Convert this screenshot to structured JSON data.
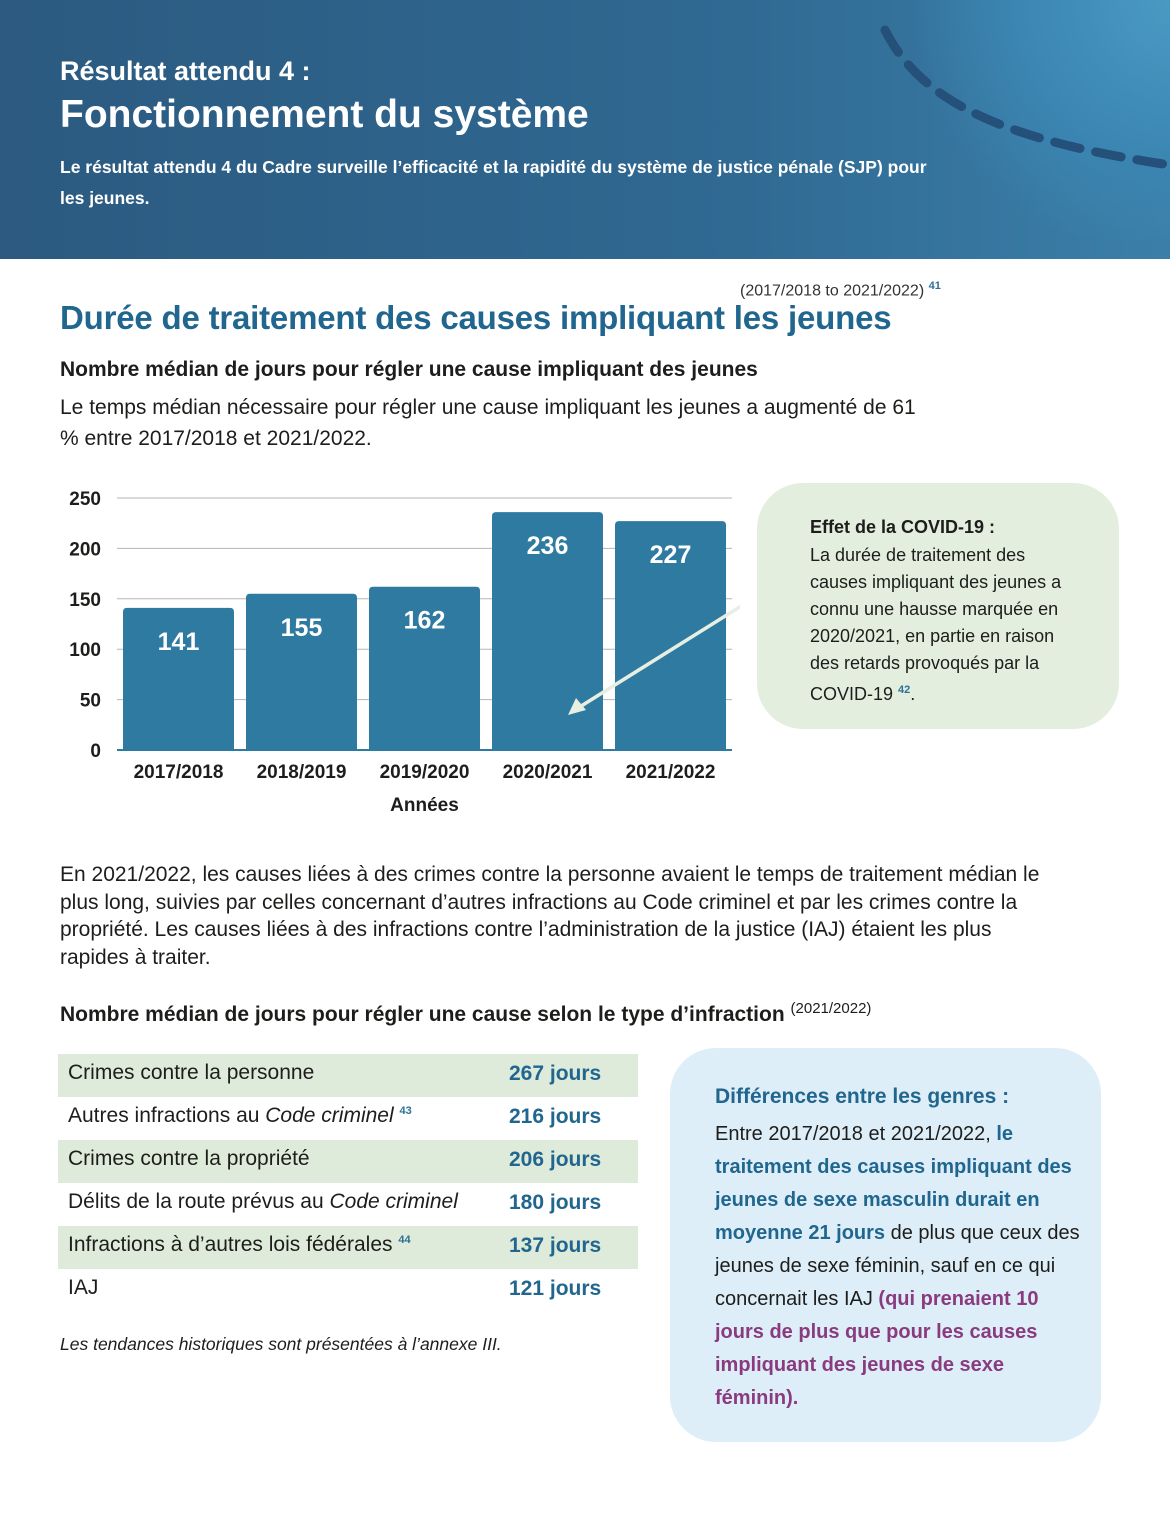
{
  "header": {
    "kicker": "Résultat attendu 4 :",
    "title": "Fonctionnement du système",
    "intro": "Le résultat attendu 4 du Cadre surveille l’efficacité et la rapidité du système de justice pénale (SJP) pour les jeunes."
  },
  "section": {
    "period": "(2017/2018 to 2021/2022)",
    "period_footnote": "41",
    "heading": "Durée de traitement des causes impliquant les jeunes",
    "subheading": "Nombre médian de jours pour régler une cause impliquant des jeunes",
    "paragraph": "Le temps médian nécessaire pour régler une cause impliquant les jeunes a augmenté de 61 % entre 2017/2018 et 2021/2022."
  },
  "chart_data": {
    "type": "bar",
    "categories": [
      "2017/2018",
      "2018/2019",
      "2019/2020",
      "2020/2021",
      "2021/2022"
    ],
    "values": [
      141,
      155,
      162,
      236,
      227
    ],
    "xlabel": "Années",
    "ylabel": "",
    "ylim": [
      0,
      250
    ],
    "yticks": [
      0,
      50,
      100,
      150,
      200,
      250
    ],
    "grid": true,
    "bar_color": "#2e7aa1",
    "label_color": "#ffffff"
  },
  "covid": {
    "title": "Effet de la COVID-19 :",
    "text": "La durée de traitement des causes impliquant des jeunes a connu une hausse marquée en 2020/2021, en partie en raison des retards provoqués par la COVID-19",
    "footnote": "42",
    "end": "."
  },
  "paragraph2": "En 2021/2022, les causes liées à des crimes contre la personne avaient le temps de traitement médian le plus long, suivies par celles concernant d’autres infractions au Code criminel et par les crimes contre la propriété. Les causes liées à des infractions contre l’administration de la justice (IAJ) étaient les plus rapides à traiter.",
  "offense_table": {
    "heading": "Nombre médian de jours pour régler une cause selon le type d’infraction",
    "year": "(2021/2022)",
    "rows": [
      {
        "pre": "Crimes contre la personne",
        "ital": "",
        "sup": "",
        "value": "267 jours"
      },
      {
        "pre": "Autres infractions au ",
        "ital": "Code criminel",
        "sup": "43",
        "value": "216 jours"
      },
      {
        "pre": "Crimes contre la propriété",
        "ital": "",
        "sup": "",
        "value": "206 jours"
      },
      {
        "pre": "Délits de la route prévus au ",
        "ital": "Code criminel",
        "sup": "",
        "value": "180 jours"
      },
      {
        "pre": "Infractions à d’autres lois fédérales",
        "ital": "",
        "sup": "44",
        "value": "137 jours"
      },
      {
        "pre": "IAJ",
        "ital": "",
        "sup": "",
        "value": "121 jours"
      }
    ],
    "note": "Les tendances historiques sont présentées à l’annexe III."
  },
  "gender": {
    "title": "Différences entre les genres :",
    "t1": "Entre 2017/2018 et 2021/2022, ",
    "t2": "le traitement des causes impliquant des jeunes de sexe masculin durait en moyenne 21 jours",
    "t3": " de plus que ceux des jeunes de sexe féminin, sauf en ce qui concernait les IAJ ",
    "t4": "(qui prenaient 10 jours de plus que pour les causes impliquant des jeunes de sexe féminin)."
  },
  "colors": {
    "header_bg": "#2c5a80",
    "heading_blue": "#21668e",
    "bar": "#2e7aa1",
    "covid_box": "#e3eedf",
    "gender_box": "#ddeef8",
    "purple": "#8a3b7f"
  }
}
